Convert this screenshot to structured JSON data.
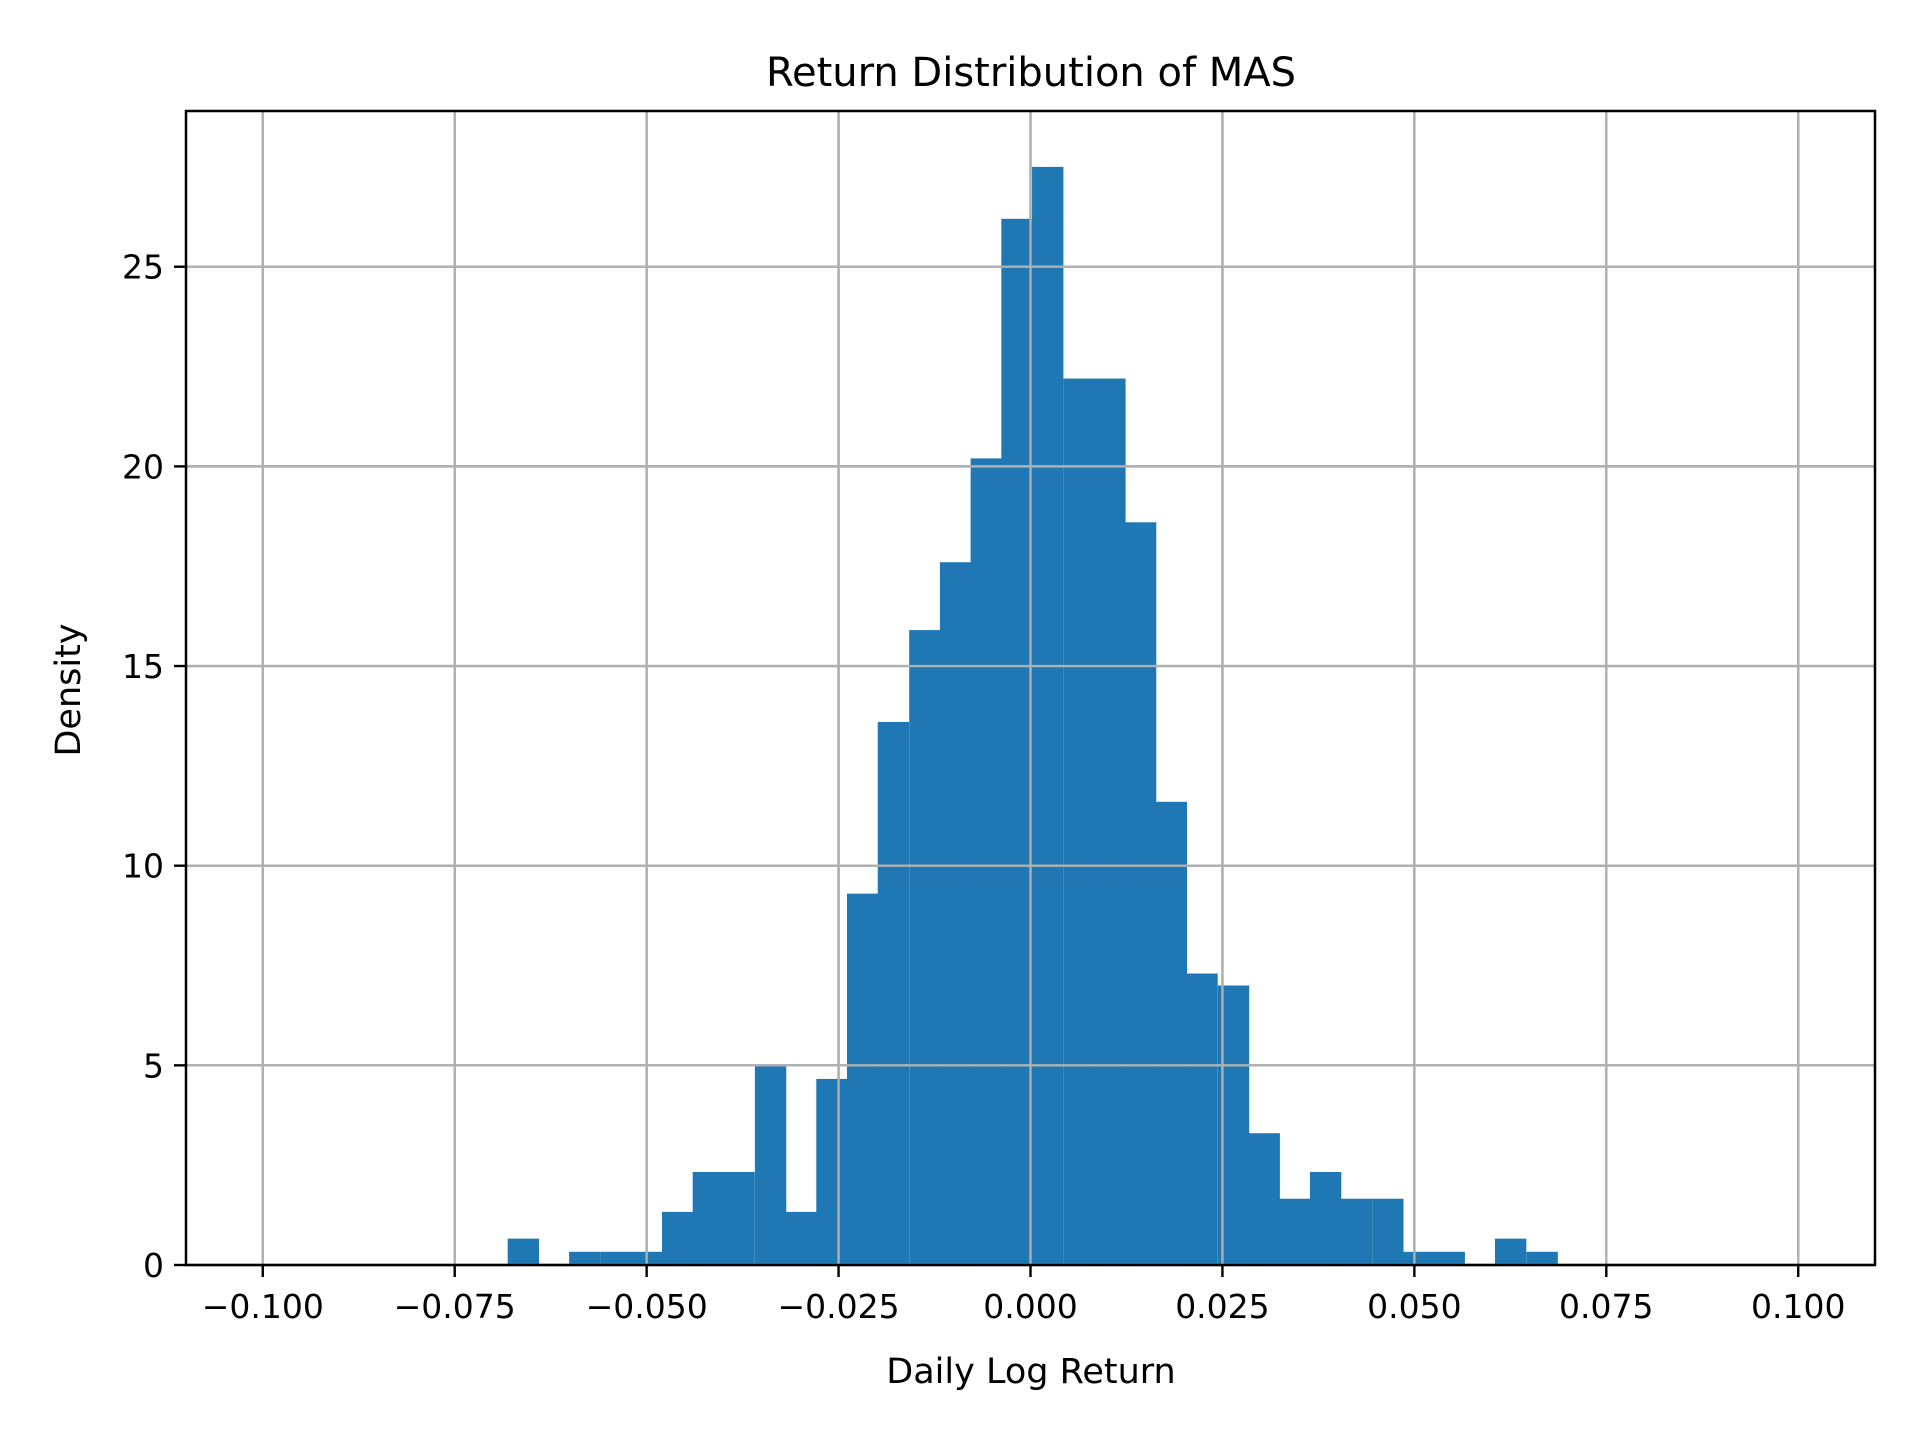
{
  "chart_data": {
    "type": "bar",
    "subtype": "histogram",
    "title": "Return Distribution of MAS",
    "xlabel": "Daily Log Return",
    "ylabel": "Density",
    "xlim": [
      -0.11,
      0.11
    ],
    "ylim": [
      0,
      28.9
    ],
    "xticks": [
      -0.1,
      -0.075,
      -0.05,
      -0.025,
      0.0,
      0.025,
      0.05,
      0.075,
      0.1
    ],
    "xtick_labels": [
      "−0.100",
      "−0.075",
      "−0.050",
      "−0.025",
      "0.000",
      "0.025",
      "0.050",
      "0.075",
      "0.100"
    ],
    "yticks": [
      0,
      5,
      10,
      15,
      20,
      25
    ],
    "ytick_labels": [
      "0",
      "5",
      "10",
      "15",
      "20",
      "25"
    ],
    "grid": true,
    "legend": null,
    "bar_color": "#1f77b4",
    "bin_width": 0.00402,
    "bin_start": -0.0681,
    "bins": [
      {
        "x0": -0.0681,
        "value": 0.66
      },
      {
        "x0": -0.0641,
        "value": 0.0
      },
      {
        "x0": -0.0601,
        "value": 0.33
      },
      {
        "x0": -0.056,
        "value": 0.33
      },
      {
        "x0": -0.052,
        "value": 0.33
      },
      {
        "x0": -0.048,
        "value": 1.33
      },
      {
        "x0": -0.044,
        "value": 2.33
      },
      {
        "x0": -0.04,
        "value": 2.33
      },
      {
        "x0": -0.0359,
        "value": 5.0
      },
      {
        "x0": -0.0319,
        "value": 1.33
      },
      {
        "x0": -0.0279,
        "value": 4.66
      },
      {
        "x0": -0.0239,
        "value": 9.3
      },
      {
        "x0": -0.0199,
        "value": 13.6
      },
      {
        "x0": -0.0158,
        "value": 15.9
      },
      {
        "x0": -0.0118,
        "value": 17.6
      },
      {
        "x0": -0.0078,
        "value": 20.2
      },
      {
        "x0": -0.0038,
        "value": 26.2
      },
      {
        "x0": 0.0002,
        "value": 27.5
      },
      {
        "x0": 0.0043,
        "value": 22.2
      },
      {
        "x0": 0.0083,
        "value": 22.2
      },
      {
        "x0": 0.0123,
        "value": 18.6
      },
      {
        "x0": 0.0163,
        "value": 11.6
      },
      {
        "x0": 0.0203,
        "value": 7.3
      },
      {
        "x0": 0.0244,
        "value": 7.0
      },
      {
        "x0": 0.0284,
        "value": 3.3
      },
      {
        "x0": 0.0324,
        "value": 1.66
      },
      {
        "x0": 0.0364,
        "value": 2.33
      },
      {
        "x0": 0.0404,
        "value": 1.66
      },
      {
        "x0": 0.0445,
        "value": 1.66
      },
      {
        "x0": 0.0485,
        "value": 0.33
      },
      {
        "x0": 0.0525,
        "value": 0.33
      },
      {
        "x0": 0.0565,
        "value": 0.0
      },
      {
        "x0": 0.0605,
        "value": 0.66
      },
      {
        "x0": 0.0646,
        "value": 0.33
      }
    ]
  },
  "colors": {
    "bar": "#1f77b4",
    "grid": "#b0b0b0",
    "axis": "#000000",
    "background": "#ffffff"
  }
}
